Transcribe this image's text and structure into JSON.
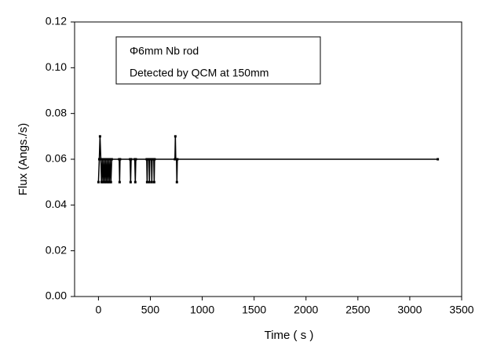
{
  "chart_data": {
    "type": "line",
    "xlabel": "Time ( s )",
    "ylabel": "Flux (Angs./s)",
    "annotations": [
      "Φ6mm Nb rod",
      "Detected by QCM at 150mm"
    ],
    "xlim": [
      -230,
      3500
    ],
    "xticks": [
      0,
      500,
      1000,
      1500,
      2000,
      2500,
      3000,
      3500
    ],
    "ylim": [
      0,
      0.12
    ],
    "yticks": [
      {
        "value": 0,
        "label": "0.00"
      },
      {
        "value": 0.02,
        "label": "0.02"
      },
      {
        "value": 0.04,
        "label": "0.04"
      },
      {
        "value": 0.06,
        "label": "0.06"
      },
      {
        "value": 0.08,
        "label": "0.08"
      },
      {
        "value": 0.1,
        "label": "0.10"
      },
      {
        "value": 0.12,
        "label": "0.12"
      }
    ],
    "series": [
      {
        "color": "#000000",
        "x": [
          0,
          8,
          15,
          23,
          30,
          38,
          45,
          53,
          60,
          68,
          75,
          83,
          90,
          98,
          105,
          113,
          120,
          128,
          200,
          204,
          208,
          305,
          310,
          315,
          350,
          355,
          360,
          465,
          469,
          473,
          487,
          491,
          495,
          510,
          514,
          518,
          533,
          537,
          541,
          737,
          741,
          745,
          752,
          756,
          760,
          3270
        ],
        "values": [
          0.05,
          0.06,
          0.07,
          0.06,
          0.05,
          0.06,
          0.05,
          0.06,
          0.05,
          0.06,
          0.05,
          0.06,
          0.05,
          0.06,
          0.05,
          0.06,
          0.05,
          0.06,
          0.06,
          0.05,
          0.06,
          0.06,
          0.05,
          0.06,
          0.06,
          0.05,
          0.06,
          0.06,
          0.05,
          0.06,
          0.06,
          0.05,
          0.06,
          0.06,
          0.05,
          0.06,
          0.06,
          0.05,
          0.06,
          0.06,
          0.07,
          0.06,
          0.06,
          0.05,
          0.06,
          0.06
        ]
      }
    ]
  }
}
